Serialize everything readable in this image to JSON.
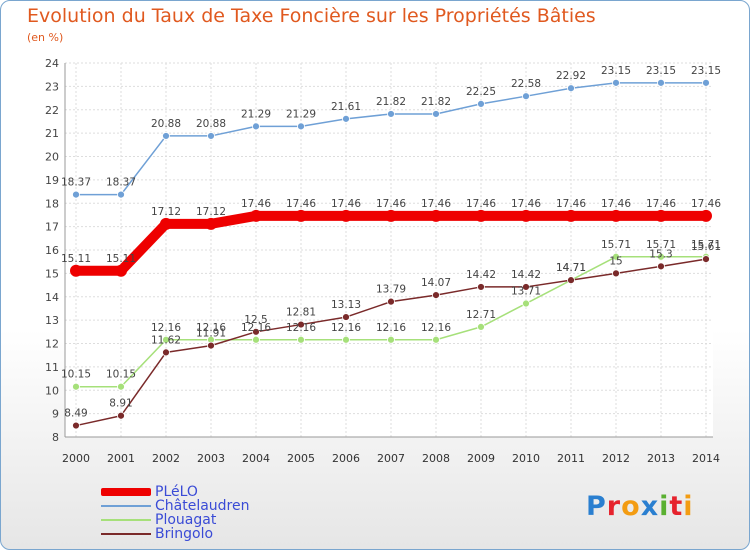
{
  "header": {
    "title": "Evolution du Taux de Taxe Foncière sur les Propriétés Bâties",
    "subtitle": "(en %)"
  },
  "logo": {
    "text": "Proxiti"
  },
  "chart_data": {
    "type": "line",
    "title": "Evolution du Taux de Taxe Foncière sur les Propriétés Bâties",
    "ylabel": "(en %)",
    "categories": [
      "2000",
      "2001",
      "2002",
      "2003",
      "2004",
      "2005",
      "2006",
      "2007",
      "2008",
      "2009",
      "2010",
      "2011",
      "2012",
      "2013",
      "2014"
    ],
    "ylim": [
      8,
      24
    ],
    "yticks": [
      8,
      9,
      10,
      11,
      12,
      13,
      14,
      15,
      16,
      17,
      18,
      19,
      20,
      21,
      22,
      23,
      24
    ],
    "grid": true,
    "legend_position": "bottom-left",
    "series": [
      {
        "name": "PLéLO",
        "color": "#ee0000",
        "values": [
          15.11,
          15.11,
          17.12,
          17.12,
          17.46,
          17.46,
          17.46,
          17.46,
          17.46,
          17.46,
          17.46,
          17.46,
          17.46,
          17.46,
          17.46
        ],
        "labels": [
          "15.11",
          "15.11",
          "17.12",
          "17.12",
          "17.46",
          "17.46",
          "17.46",
          "17.46",
          "17.46",
          "17.46",
          "17.46",
          "17.46",
          "17.46",
          "17.46",
          "17.46"
        ]
      },
      {
        "name": "Châtelaudren",
        "color": "#6fa0d6",
        "values": [
          18.37,
          18.37,
          20.88,
          20.88,
          21.29,
          21.29,
          21.61,
          21.82,
          21.82,
          22.25,
          22.58,
          22.92,
          23.15,
          23.15,
          23.15
        ],
        "labels": [
          "18.37",
          "18.37",
          "20.88",
          "20.88",
          "21.29",
          "21.29",
          "21.61",
          "21.82",
          "21.82",
          "22.25",
          "22.58",
          "22.92",
          "23.15",
          "23.15",
          "23.15"
        ]
      },
      {
        "name": "Plouagat",
        "color": "#a6e07a",
        "values": [
          10.15,
          10.15,
          12.16,
          12.16,
          12.16,
          12.16,
          12.16,
          12.16,
          12.16,
          12.71,
          13.71,
          14.71,
          15.71,
          15.71,
          15.71
        ],
        "labels": [
          "10.15",
          "10.15",
          "12.16",
          "12.16",
          "12.16",
          "12.16",
          "12.16",
          "12.16",
          "12.16",
          "12.71",
          "13.71",
          "14.71",
          "15.71",
          "15.71",
          "15.71"
        ]
      },
      {
        "name": "Bringolo",
        "color": "#7a2a2a",
        "values": [
          8.49,
          8.91,
          11.62,
          11.91,
          12.5,
          12.81,
          13.13,
          13.79,
          14.07,
          14.42,
          14.42,
          14.71,
          15,
          15.3,
          15.61
        ],
        "labels": [
          "8.49",
          "8.91",
          "11.62",
          "11.91",
          "12.5",
          "12.81",
          "13.13",
          "13.79",
          "14.07",
          "14.42",
          "14.42",
          "14.71",
          "15",
          "15.3",
          "15.61"
        ]
      }
    ]
  }
}
